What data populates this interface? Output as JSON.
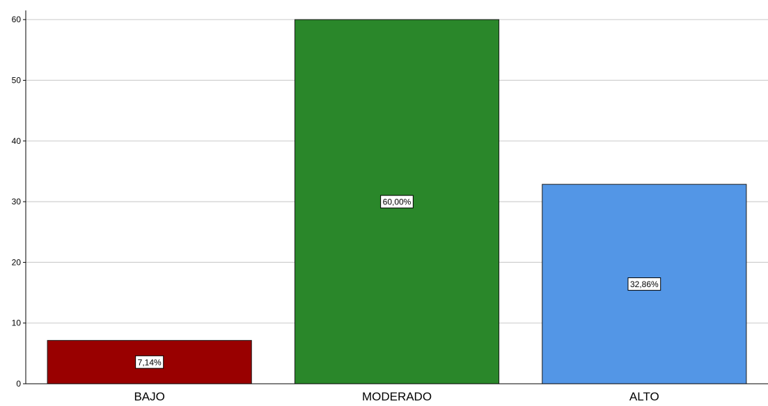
{
  "chart_data": {
    "type": "bar",
    "categories": [
      "BAJO",
      "MODERADO",
      "ALTO"
    ],
    "values": [
      7.14,
      60.0,
      32.86
    ],
    "data_labels": [
      "7,14%",
      "60,00%",
      "32,86%"
    ],
    "colors": [
      "#990000",
      "#2a872a",
      "#5396e6"
    ],
    "yticks": [
      "0",
      "10",
      "20",
      "30",
      "40",
      "50",
      "60"
    ],
    "ylim": [
      0,
      61.5
    ],
    "grid": true,
    "title": "",
    "xlabel": "",
    "ylabel": ""
  }
}
